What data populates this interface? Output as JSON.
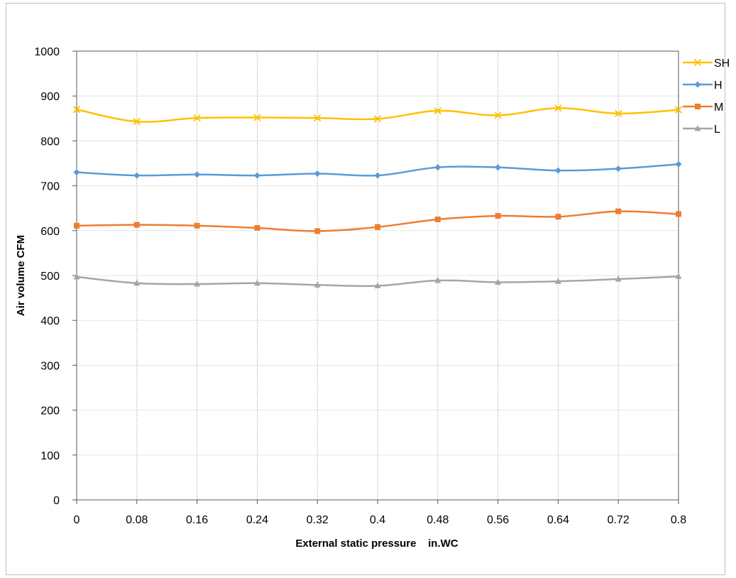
{
  "chart_data": {
    "type": "line",
    "title": "",
    "xlabel": "External static pressure    in.WC",
    "ylabel": "Air volume  CFM",
    "x": [
      "0",
      "0.08",
      "0.16",
      "0.24",
      "0.32",
      "0.4",
      "0.48",
      "0.56",
      "0.64",
      "0.72",
      "0.8"
    ],
    "ylim": [
      0,
      1000
    ],
    "yticks": [
      "0",
      "100",
      "200",
      "300",
      "400",
      "500",
      "600",
      "700",
      "800",
      "900",
      "1000"
    ],
    "grid": {
      "vertical": "dotted",
      "horizontal": "solid light"
    },
    "legend_position": "top-right",
    "series": [
      {
        "name": "SH",
        "color": "#ffc000",
        "marker": "x-marker",
        "values": [
          870,
          843,
          851,
          852,
          851,
          849,
          867,
          857,
          873,
          861,
          869
        ]
      },
      {
        "name": "H",
        "color": "#5b9bd5",
        "marker": "diamond-marker",
        "values": [
          730,
          723,
          725,
          723,
          727,
          723,
          741,
          741,
          734,
          738,
          748
        ]
      },
      {
        "name": "M",
        "color": "#ed7d31",
        "marker": "square-marker",
        "values": [
          611,
          613,
          611,
          606,
          599,
          608,
          625,
          633,
          631,
          643,
          637
        ]
      },
      {
        "name": "L",
        "color": "#a5a5a5",
        "marker": "triangle-marker",
        "values": [
          497,
          483,
          481,
          483,
          479,
          477,
          489,
          485,
          487,
          492,
          498
        ]
      }
    ]
  }
}
